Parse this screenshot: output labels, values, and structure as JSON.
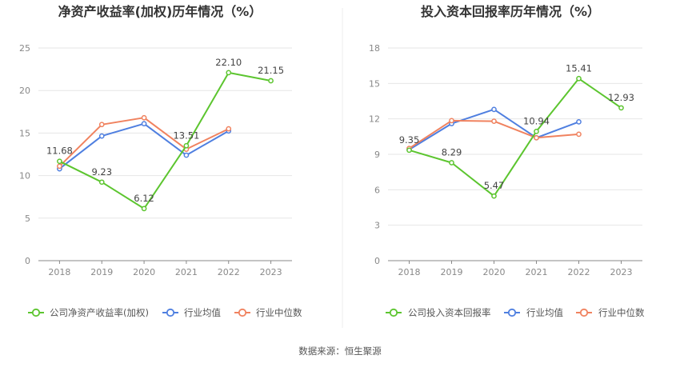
{
  "colors": {
    "company": "#5cc52f",
    "industry_avg": "#4f7fe0",
    "industry_median": "#f0825f",
    "grid": "#e6e6e6",
    "axis": "#888888",
    "divider": "#eeeeee"
  },
  "source_label": "数据来源：恒生聚源",
  "chart_data": [
    {
      "type": "line",
      "title": "净资产收益率(加权)历年情况（%）",
      "categories": [
        "2018",
        "2019",
        "2020",
        "2021",
        "2022",
        "2023"
      ],
      "ylim": [
        0,
        25
      ],
      "yticks": [
        "0",
        "5",
        "10",
        "15",
        "20",
        "25"
      ],
      "series": [
        {
          "key": "company",
          "name": "公司净资产收益率(加权)",
          "values": [
            11.68,
            9.23,
            6.12,
            13.51,
            22.1,
            21.15
          ],
          "labels": [
            "11.68",
            "9.23",
            "6.12",
            "13.51",
            "22.10",
            "21.15"
          ],
          "label_pos": [
            "above",
            "above",
            "above",
            "above",
            "above",
            "above"
          ]
        },
        {
          "key": "industry_avg",
          "name": "行业均值",
          "values": [
            10.8,
            14.65,
            16.1,
            12.4,
            15.25,
            null
          ]
        },
        {
          "key": "industry_median",
          "name": "行业中位数",
          "values": [
            11.1,
            16.0,
            16.8,
            13.1,
            15.5,
            null
          ]
        }
      ]
    },
    {
      "type": "line",
      "title": "投入资本回报率历年情况（%）",
      "categories": [
        "2018",
        "2019",
        "2020",
        "2021",
        "2022",
        "2023"
      ],
      "ylim": [
        0,
        18
      ],
      "yticks": [
        "0",
        "3",
        "6",
        "9",
        "12",
        "15",
        "18"
      ],
      "series": [
        {
          "key": "company",
          "name": "公司投入资本回报率",
          "values": [
            9.35,
            8.29,
            5.47,
            10.94,
            15.41,
            12.93
          ],
          "labels": [
            "9.35",
            "8.29",
            "5.47",
            "10.94",
            "15.41",
            "12.93"
          ],
          "label_pos": [
            "above",
            "above",
            "above",
            "above",
            "above",
            "above"
          ]
        },
        {
          "key": "industry_avg",
          "name": "行业均值",
          "values": [
            9.4,
            11.6,
            12.8,
            10.4,
            11.75,
            null
          ]
        },
        {
          "key": "industry_median",
          "name": "行业中位数",
          "values": [
            9.5,
            11.85,
            11.8,
            10.4,
            10.7,
            null
          ]
        }
      ]
    }
  ]
}
